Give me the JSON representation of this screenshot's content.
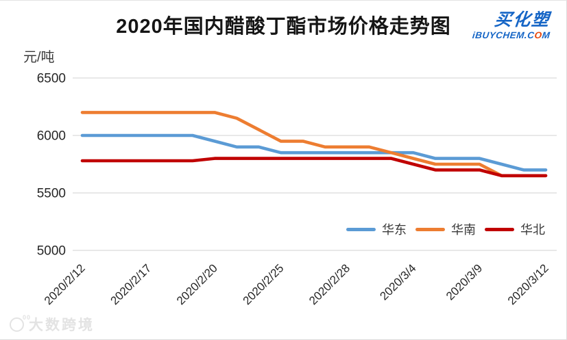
{
  "title": "2020年国内醋酸丁酯市场价格走势图",
  "logo": {
    "brand": "买化塑",
    "domain_prefix": "iBUYCHEM.C",
    "domain_o": "O",
    "domain_suffix": "M",
    "brand_color": "#1565c6",
    "o_color": "#e8470b"
  },
  "watermark": {
    "icon_sup": "00",
    "text": "大数跨境"
  },
  "chart_data": {
    "type": "line",
    "title": "2020年国内醋酸丁酯市场价格走势图",
    "ylabel": "元/吨",
    "xlabel": "",
    "ylim": [
      5000,
      6500
    ],
    "yticks": [
      6500,
      6000,
      5500,
      5000
    ],
    "grid": "horizontal",
    "gridline_color": "#d9d9d9",
    "tick_label_color": "#262626",
    "legend_position": "bottom-right",
    "x": [
      "2020/2/12",
      "2020/2/13",
      "2020/2/14",
      "2020/2/17",
      "2020/2/18",
      "2020/2/19",
      "2020/2/20",
      "2020/2/21",
      "2020/2/24",
      "2020/2/25",
      "2020/2/26",
      "2020/2/27",
      "2020/2/28",
      "2020/3/2",
      "2020/3/3",
      "2020/3/4",
      "2020/3/5",
      "2020/3/6",
      "2020/3/9",
      "2020/3/10",
      "2020/3/11",
      "2020/3/12"
    ],
    "x_tick_labels": [
      "2020/2/12",
      "2020/2/17",
      "2020/2/20",
      "2020/2/25",
      "2020/2/28",
      "2020/3/4",
      "2020/3/9",
      "2020/3/12"
    ],
    "series": [
      {
        "name": "华东",
        "color": "#5B9BD5",
        "values": [
          6000,
          6000,
          6000,
          6000,
          6000,
          6000,
          5950,
          5900,
          5900,
          5850,
          5850,
          5850,
          5850,
          5850,
          5850,
          5850,
          5800,
          5800,
          5800,
          5750,
          5700,
          5700
        ]
      },
      {
        "name": "华南",
        "color": "#ED7D31",
        "values": [
          6200,
          6200,
          6200,
          6200,
          6200,
          6200,
          6200,
          6150,
          6050,
          5950,
          5950,
          5900,
          5900,
          5900,
          5850,
          5800,
          5750,
          5750,
          5750,
          5650,
          5650,
          5650
        ]
      },
      {
        "name": "华北",
        "color": "#C00000",
        "values": [
          5780,
          5780,
          5780,
          5780,
          5780,
          5780,
          5800,
          5800,
          5800,
          5800,
          5800,
          5800,
          5800,
          5800,
          5800,
          5750,
          5700,
          5700,
          5700,
          5650,
          5650,
          5650
        ]
      }
    ]
  }
}
